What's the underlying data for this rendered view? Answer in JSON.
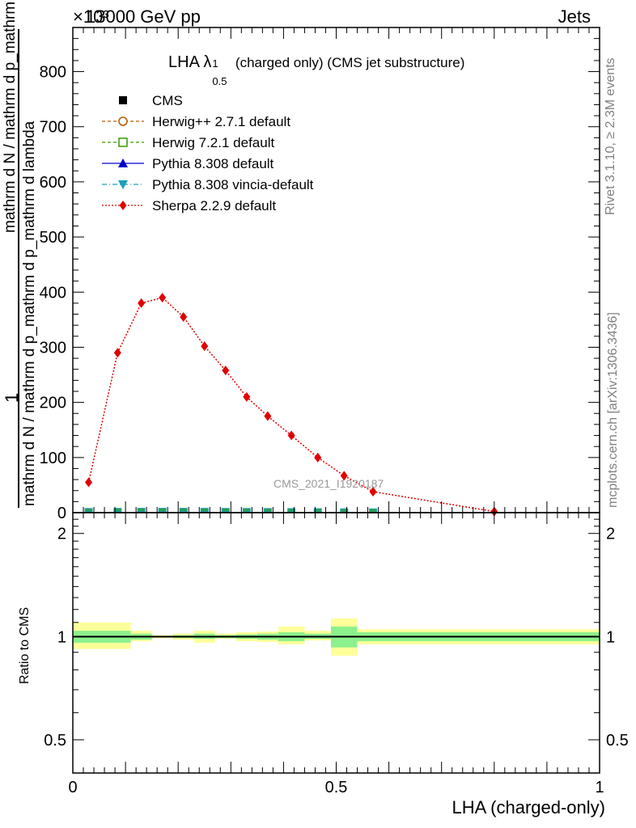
{
  "header": {
    "left": "13000 GeV pp",
    "right": "Jets",
    "exponent": "×10³"
  },
  "side_labels": {
    "rivet": "Rivet 3.1.10, ≥ 2.3M events",
    "mcplots": "mcplots.cern.ch [arXiv:1306.3436]"
  },
  "watermark": "CMS_2021_I1920187",
  "chart_data": [
    {
      "type": "line",
      "title_main": "LHA λ",
      "title_sup": "1",
      "title_sub": "0.5",
      "title_rest": "(charged only) (CMS jet substructure)",
      "ylabel_top": "1",
      "ylabel_num": "mathrm d N / mathrm d p_mathrm d lambda",
      "ylabel_den": "mathrm d N / mathrm d p_mathrm d p_mathrm d lambda",
      "y_exponent": 3,
      "xlim": [
        0,
        1
      ],
      "ylim": [
        0,
        880
      ],
      "y_ticks": [
        0,
        100,
        200,
        300,
        400,
        500,
        600,
        700,
        800
      ],
      "legend_position": "top-left",
      "legend": [
        {
          "label": "CMS",
          "marker": "square",
          "color": "#000000"
        },
        {
          "label": "Herwig++ 2.7.1 default",
          "marker": "circle-open",
          "color": "#b05a00"
        },
        {
          "label": "Herwig 7.2.1 default",
          "marker": "square-open",
          "color": "#3a9a00"
        },
        {
          "label": "Pythia 8.308 default",
          "marker": "triangle-up",
          "color": "#0000cc"
        },
        {
          "label": "Pythia 8.308 vincia-default",
          "marker": "triangle-down",
          "color": "#1aa0b8"
        },
        {
          "label": "Sherpa 2.2.9 default",
          "marker": "diamond",
          "color": "#e00000"
        }
      ],
      "series": [
        {
          "name": "CMS",
          "x": [
            0.03,
            0.085,
            0.13,
            0.17,
            0.21,
            0.25,
            0.29,
            0.33,
            0.37,
            0.415,
            0.465,
            0.515,
            0.57
          ],
          "y": [
            1.0,
            1.2,
            1.3,
            1.3,
            1.3,
            1.2,
            1.1,
            1.0,
            0.9,
            0.8,
            0.6,
            0.4,
            0.25
          ]
        },
        {
          "name": "Sherpa 2.2.9 default",
          "x": [
            0.03,
            0.085,
            0.13,
            0.17,
            0.21,
            0.25,
            0.29,
            0.33,
            0.37,
            0.415,
            0.465,
            0.515,
            0.57,
            0.8
          ],
          "y": [
            55,
            290,
            380,
            390,
            355,
            302,
            258,
            210,
            175,
            140,
            100,
            67,
            38,
            2
          ]
        }
      ]
    },
    {
      "type": "area",
      "ylabel": "Ratio to CMS",
      "xlabel": "LHA (charged-only)",
      "xlim": [
        0,
        1
      ],
      "ylim": [
        0.4,
        2.3
      ],
      "y_scale": "log",
      "y_ticks": [
        0.5,
        1,
        2
      ],
      "x_ticks": [
        0,
        0.5,
        1
      ],
      "reference": 1,
      "bands": {
        "bin_edges": [
          0,
          0.11,
          0.15,
          0.19,
          0.23,
          0.27,
          0.31,
          0.35,
          0.39,
          0.44,
          0.49,
          0.54,
          1.0
        ],
        "stat_low": [
          0.96,
          0.98,
          0.995,
          0.99,
          0.985,
          0.99,
          0.985,
          0.98,
          0.97,
          0.985,
          0.93,
          0.97
        ],
        "stat_high": [
          1.04,
          1.02,
          1.005,
          1.01,
          1.02,
          1.01,
          1.015,
          1.02,
          1.03,
          1.02,
          1.07,
          1.03
        ],
        "tot_low": [
          0.92,
          0.97,
          0.99,
          0.98,
          0.96,
          0.985,
          0.97,
          0.965,
          0.95,
          0.975,
          0.88,
          0.95
        ],
        "tot_high": [
          1.1,
          1.04,
          1.01,
          1.02,
          1.04,
          1.02,
          1.03,
          1.035,
          1.07,
          1.04,
          1.13,
          1.05
        ],
        "stat_color": "#8cf08c",
        "tot_color": "#ffff99"
      }
    }
  ]
}
